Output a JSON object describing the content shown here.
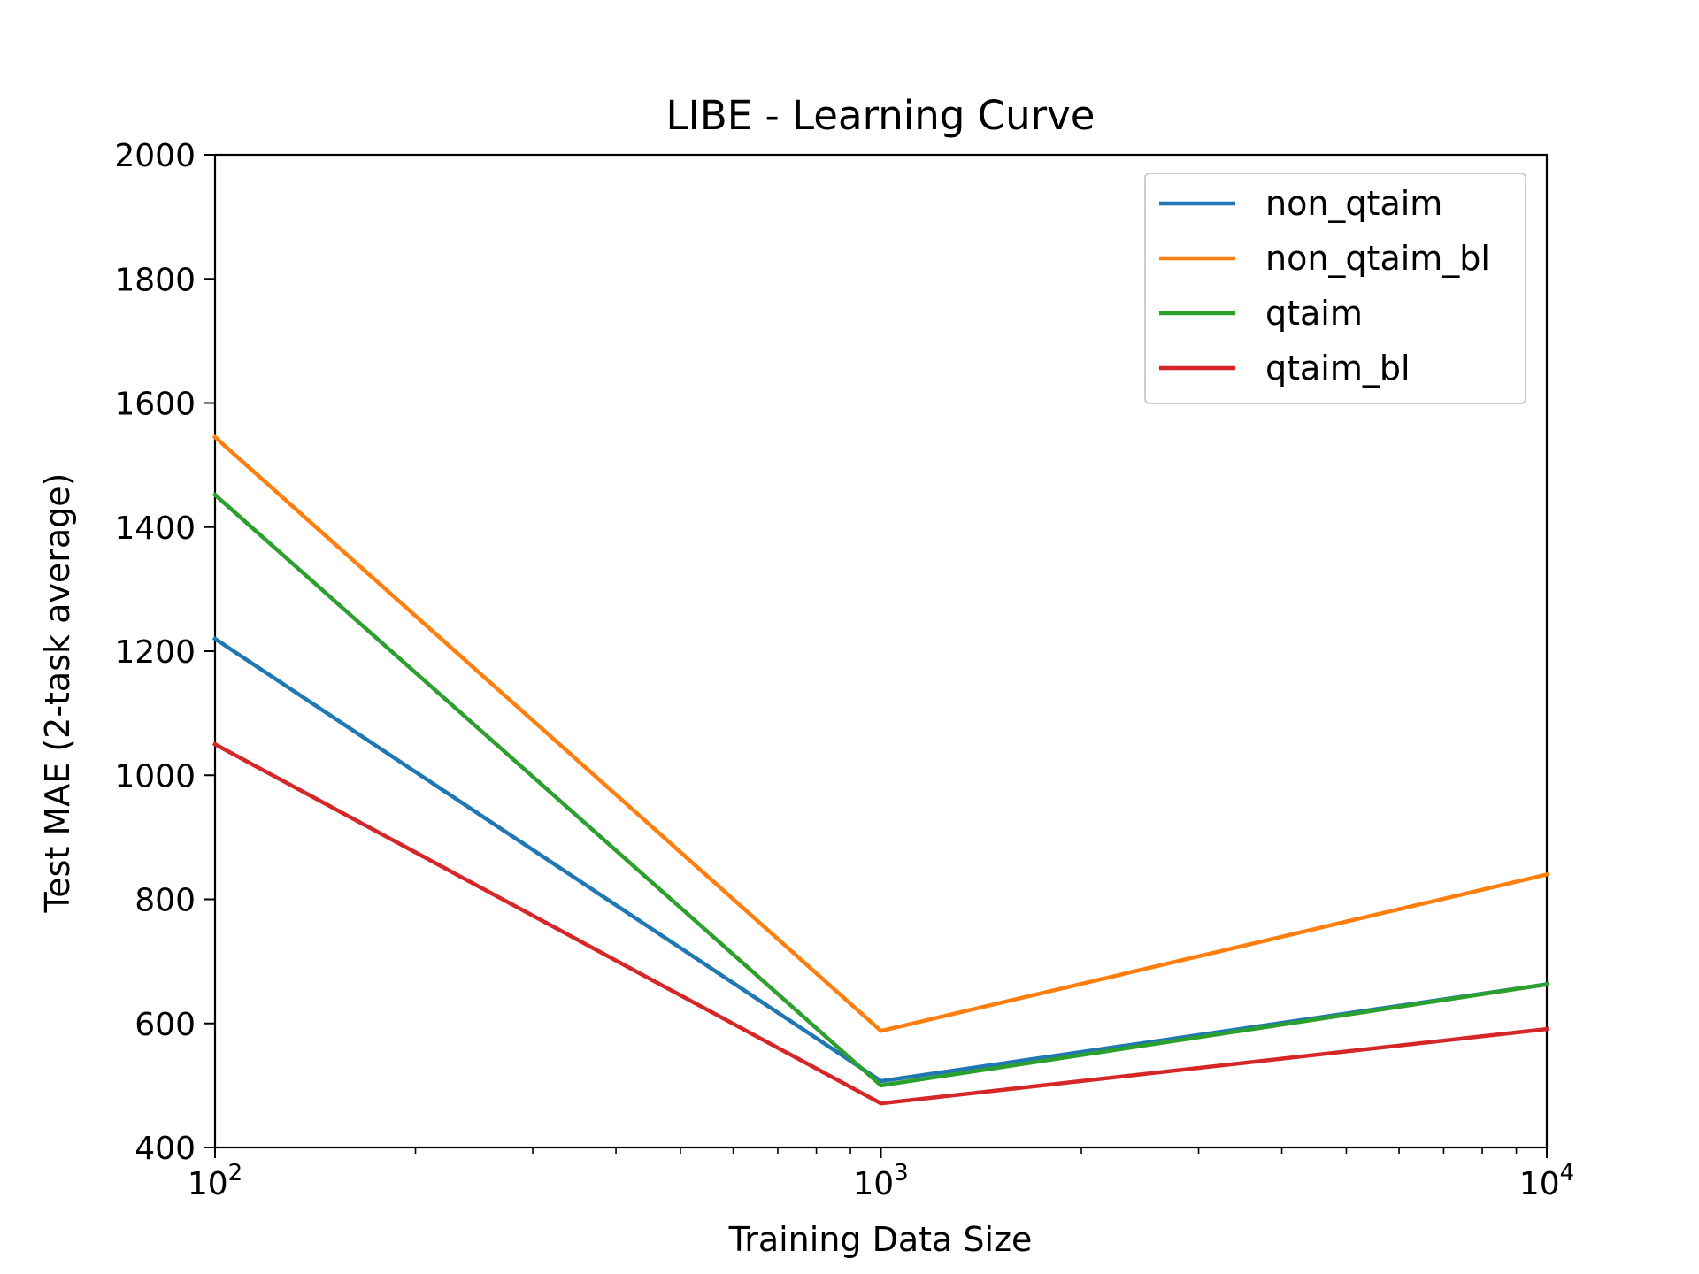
{
  "chart_data": {
    "type": "line",
    "title": "LIBE - Learning Curve",
    "xlabel": "Training Data Size",
    "ylabel": "Test MAE (2-task average)",
    "xscale": "log",
    "xlim": [
      100,
      10000
    ],
    "ylim": [
      400,
      2000
    ],
    "x": [
      100,
      1000,
      10000
    ],
    "x_ticks": [
      {
        "value": 100,
        "base": "10",
        "exp": "2"
      },
      {
        "value": 1000,
        "base": "10",
        "exp": "3"
      },
      {
        "value": 10000,
        "base": "10",
        "exp": "4"
      }
    ],
    "y_ticks": [
      400,
      600,
      800,
      1000,
      1200,
      1400,
      1600,
      1800,
      2000
    ],
    "y_tick_labels": [
      "400",
      "600",
      "800",
      "1000",
      "1200",
      "1400",
      "1600",
      "1800",
      "2000"
    ],
    "grid": false,
    "legend_position": "top-right",
    "series": [
      {
        "name": "non_qtaim",
        "color": "#1f77b4",
        "values": [
          1220,
          507,
          663
        ]
      },
      {
        "name": "non_qtaim_bl",
        "color": "#ff7f0e",
        "values": [
          1545,
          588,
          840
        ]
      },
      {
        "name": "qtaim",
        "color": "#2ca02c",
        "values": [
          1452,
          500,
          663
        ]
      },
      {
        "name": "qtaim_bl",
        "color": "#d62728",
        "values": [
          1050,
          471,
          591
        ]
      }
    ]
  }
}
